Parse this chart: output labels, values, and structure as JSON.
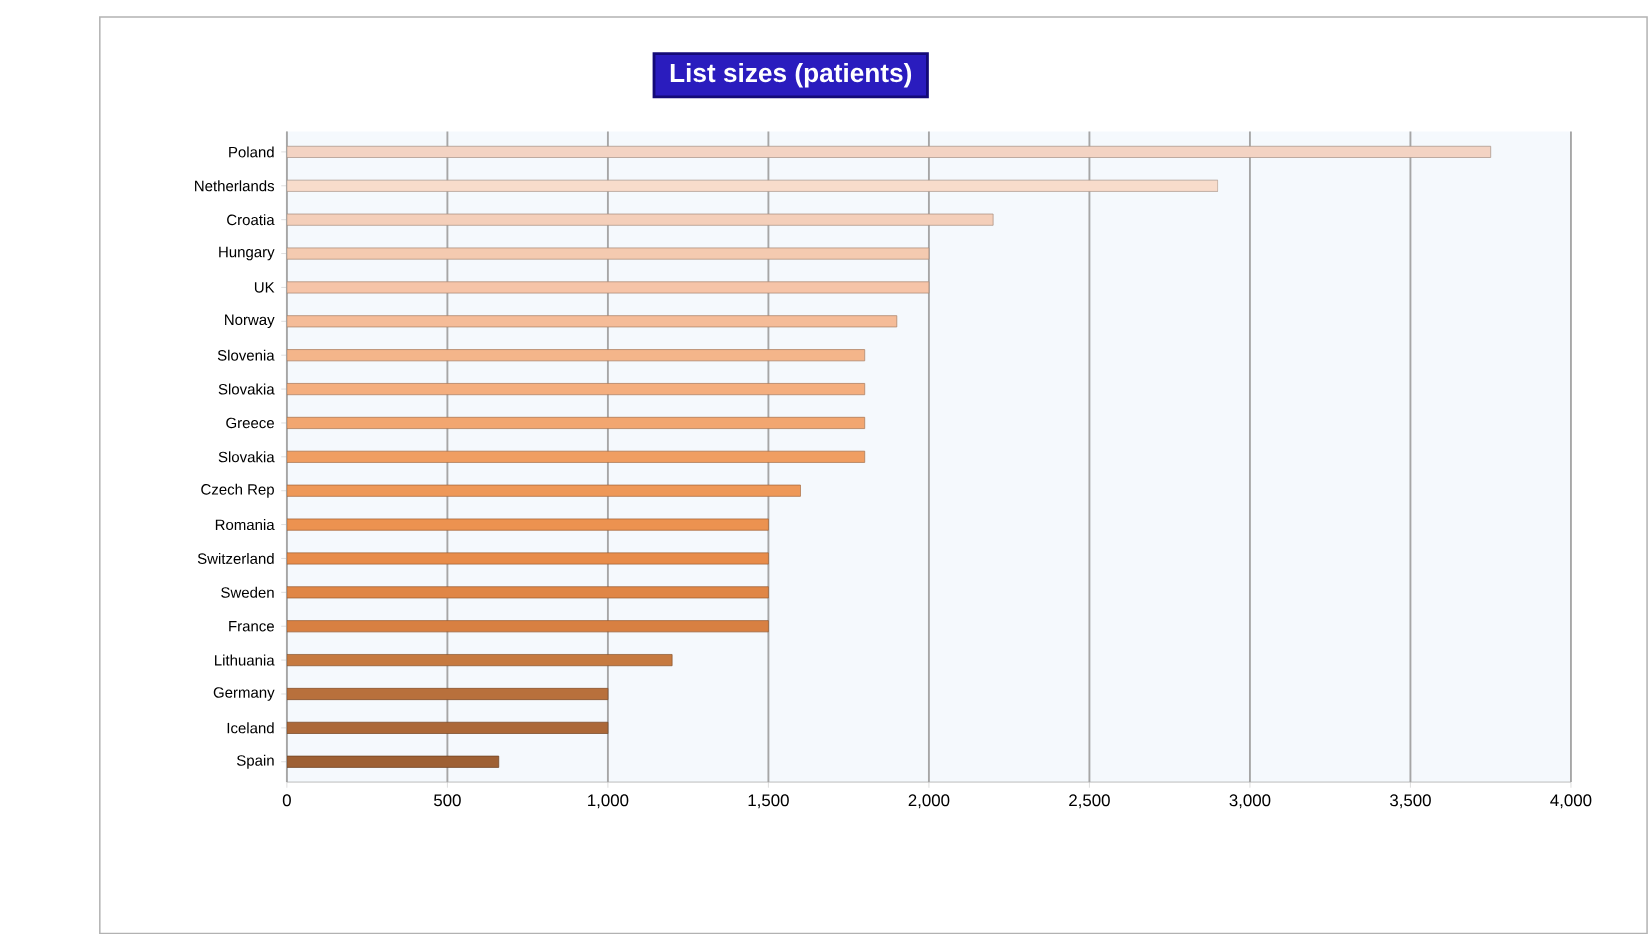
{
  "chart_data": {
    "type": "bar",
    "orientation": "horizontal",
    "title": "List sizes (patients)",
    "categories": [
      "Poland",
      "Netherlands",
      "Croatia",
      "Hungary",
      "UK",
      "Norway",
      "Slovenia",
      "Slovakia",
      "Greece",
      "Slovakia",
      "Czech Rep",
      "Romania",
      "Switzerland",
      "Sweden",
      "France",
      "Lithuania",
      "Germany",
      "Iceland",
      "Spain"
    ],
    "values": [
      3750,
      2900,
      2200,
      2000,
      2000,
      1900,
      1800,
      1800,
      1800,
      1800,
      1600,
      1500,
      1500,
      1500,
      1500,
      1200,
      1000,
      1000,
      660
    ],
    "colors": [
      "#f3d3c3",
      "#f8dccb",
      "#f4cfba",
      "#f4cab0",
      "#f6c4a8",
      "#f5bc98",
      "#f4b58a",
      "#f4ae7e",
      "#f2a670",
      "#f09e62",
      "#ee9858",
      "#ec9250",
      "#e88c4a",
      "#e08646",
      "#d88042",
      "#c67a40",
      "#b8703c",
      "#ac6838",
      "#9e6034"
    ],
    "xlim": [
      0,
      4000
    ],
    "xticks": [
      0,
      500,
      {
        "value": 1000,
        "label": "1,000"
      },
      {
        "value": 1500,
        "label": "1,500"
      },
      {
        "value": 2000,
        "label": "2,000"
      },
      {
        "value": 2500,
        "label": "2,500"
      },
      {
        "value": 3000,
        "label": "3,000"
      },
      {
        "value": 3500,
        "label": "3,500"
      },
      {
        "value": 4000,
        "label": "4,000"
      }
    ],
    "grid": "x"
  }
}
